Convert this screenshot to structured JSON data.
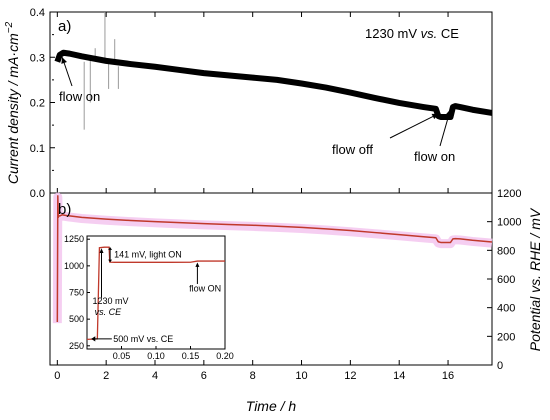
{
  "chart_data": [
    {
      "type": "line",
      "panel": "a)",
      "annotation_condition": "1230 mV ",
      "annotation_condition_italic": "vs.",
      "annotation_condition_suffix": " CE",
      "ylabel": "Current density / mA·cm",
      "ylabel_sup": "−2",
      "ylim": [
        0.0,
        0.4
      ],
      "yticks": [
        0.0,
        0.1,
        0.2,
        0.3,
        0.4
      ],
      "ytick_labels": [
        "0.0",
        "0.1",
        "0.2",
        "0.3",
        "0.4"
      ],
      "xlim": [
        -0.3,
        17.8
      ],
      "grid": false,
      "series": [
        {
          "color": "#000000",
          "x": [
            0.0,
            0.1,
            0.25,
            0.5,
            1.0,
            2.0,
            3.0,
            4.0,
            5.0,
            6.0,
            7.0,
            8.0,
            9.0,
            10.0,
            11.0,
            12.0,
            13.0,
            14.0,
            15.0,
            15.5,
            15.6,
            15.7,
            16.1,
            16.2,
            16.3,
            16.5,
            17.0,
            17.8
          ],
          "y": [
            0.29,
            0.305,
            0.31,
            0.308,
            0.302,
            0.292,
            0.285,
            0.279,
            0.272,
            0.265,
            0.26,
            0.255,
            0.25,
            0.242,
            0.233,
            0.222,
            0.21,
            0.199,
            0.19,
            0.186,
            0.17,
            0.168,
            0.168,
            0.19,
            0.192,
            0.19,
            0.184,
            0.177
          ]
        }
      ],
      "spikes": [
        {
          "x": 1.1,
          "y0": 0.29,
          "y1": 0.14
        },
        {
          "x": 1.35,
          "y0": 0.3,
          "y1": 0.2
        },
        {
          "x": 1.55,
          "y0": 0.3,
          "y1": 0.32
        },
        {
          "x": 1.95,
          "y0": 0.29,
          "y1": 0.4
        },
        {
          "x": 2.1,
          "y0": 0.29,
          "y1": 0.23
        },
        {
          "x": 2.35,
          "y0": 0.29,
          "y1": 0.34
        },
        {
          "x": 2.5,
          "y0": 0.28,
          "y1": 0.23
        }
      ],
      "annotations": [
        {
          "text": "flow on",
          "arrow_x": 0.2,
          "arrow_y": 0.3
        },
        {
          "text": "flow off",
          "arrow_x": 15.6,
          "arrow_y": 0.175
        },
        {
          "text": "flow on",
          "arrow_x": 16.1,
          "arrow_y": 0.185
        }
      ]
    },
    {
      "type": "line",
      "panel": "b)",
      "xlabel": "Time / h",
      "ylabel": "Potential ",
      "ylabel_italic_part": "vs. RHE / mV",
      "xlim": [
        -0.3,
        17.8
      ],
      "xticks": [
        0,
        2,
        4,
        6,
        8,
        10,
        12,
        14,
        16
      ],
      "xtick_labels": [
        "0",
        "2",
        "4",
        "6",
        "8",
        "10",
        "12",
        "14",
        "16"
      ],
      "ylim": [
        0,
        1200
      ],
      "yticks": [
        0,
        200,
        400,
        600,
        800,
        1000,
        1200
      ],
      "ytick_labels": [
        "0",
        "200",
        "400",
        "600",
        "800",
        "1000",
        "1200"
      ],
      "grid": false,
      "series": [
        {
          "color": "#c0392b",
          "shade_color": "#f3c6ef",
          "x": [
            0.0,
            0.02,
            0.04,
            0.06,
            0.1,
            0.2,
            0.3,
            0.5,
            1.0,
            2.0,
            3.0,
            4.0,
            5.0,
            6.0,
            7.0,
            8.0,
            9.0,
            10.0,
            11.0,
            12.0,
            13.0,
            14.0,
            15.0,
            15.5,
            15.6,
            15.7,
            16.1,
            16.2,
            16.3,
            16.5,
            17.0,
            17.8
          ],
          "y": [
            300,
            1180,
            1030,
            1040,
            1040,
            1048,
            1045,
            1040,
            1030,
            1018,
            1008,
            1000,
            993,
            986,
            980,
            975,
            968,
            960,
            950,
            938,
            924,
            910,
            895,
            888,
            860,
            855,
            855,
            880,
            882,
            880,
            870,
            858
          ]
        }
      ],
      "inset": {
        "type": "line",
        "xlim": [
          0.0,
          0.2
        ],
        "xticks": [
          0.05,
          0.1,
          0.15,
          0.2
        ],
        "xtick_labels": [
          "0.05",
          "0.10",
          "0.15",
          "0.20"
        ],
        "ylim": [
          220,
          1280
        ],
        "yticks": [
          250,
          500,
          750,
          1000,
          1250
        ],
        "ytick_labels": [
          "250",
          "500",
          "750",
          "1000",
          "1250"
        ],
        "series": [
          {
            "color": "#c0392b",
            "x": [
              0.0,
              0.015,
              0.016,
              0.018,
              0.025,
              0.032,
              0.033,
              0.04,
              0.08,
              0.12,
              0.15,
              0.16,
              0.2
            ],
            "y": [
              310,
              315,
              600,
              1170,
              1175,
              1175,
              1035,
              1033,
              1033,
              1033,
              1034,
              1045,
              1045
            ]
          }
        ],
        "annotations": [
          {
            "text": "141 mV, light ON"
          },
          {
            "text_lines": [
              "1230 mV",
              "vs. CE"
            ]
          },
          {
            "text": "flow ON"
          },
          {
            "text": "500 mV vs. CE"
          }
        ]
      }
    }
  ]
}
